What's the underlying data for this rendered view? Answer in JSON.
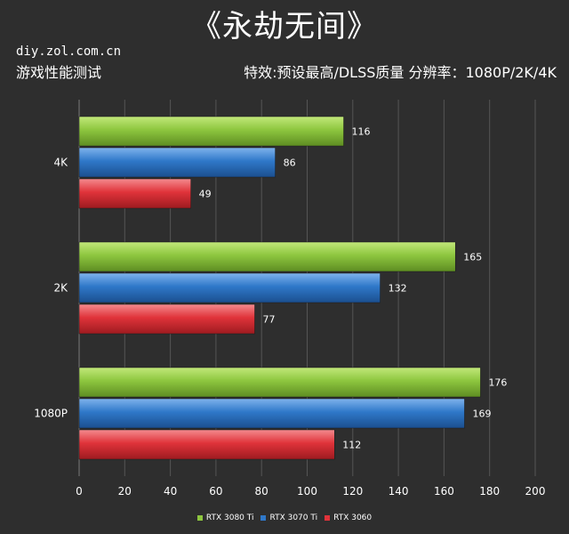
{
  "header": {
    "title": "《永劫无间》",
    "site": "diy.zol.com.cn",
    "subtitle_left": "游戏性能测试",
    "subtitle_right": "特效:预设最高/DLSS质量  分辨率：1080P/2K/4K"
  },
  "colors": {
    "RTX 3080 Ti": "#8dc63f",
    "RTX 3070 Ti": "#2f78c9",
    "RTX 3060": "#e0333a",
    "background": "#2e2e2e",
    "grid": "#555555"
  },
  "chart_data": {
    "type": "bar",
    "orientation": "horizontal",
    "categories": [
      "4K",
      "2K",
      "1080P"
    ],
    "series": [
      {
        "name": "RTX 3080 Ti",
        "values": [
          116,
          165,
          176
        ]
      },
      {
        "name": "RTX 3070 Ti",
        "values": [
          86,
          132,
          169
        ]
      },
      {
        "name": "RTX 3060",
        "values": [
          49,
          77,
          112
        ]
      }
    ],
    "xlim": [
      0,
      200
    ],
    "xticks": [
      0,
      20,
      40,
      60,
      80,
      100,
      120,
      140,
      160,
      180,
      200
    ],
    "grid": true,
    "legend": "bottom-center",
    "data_labels": true
  }
}
